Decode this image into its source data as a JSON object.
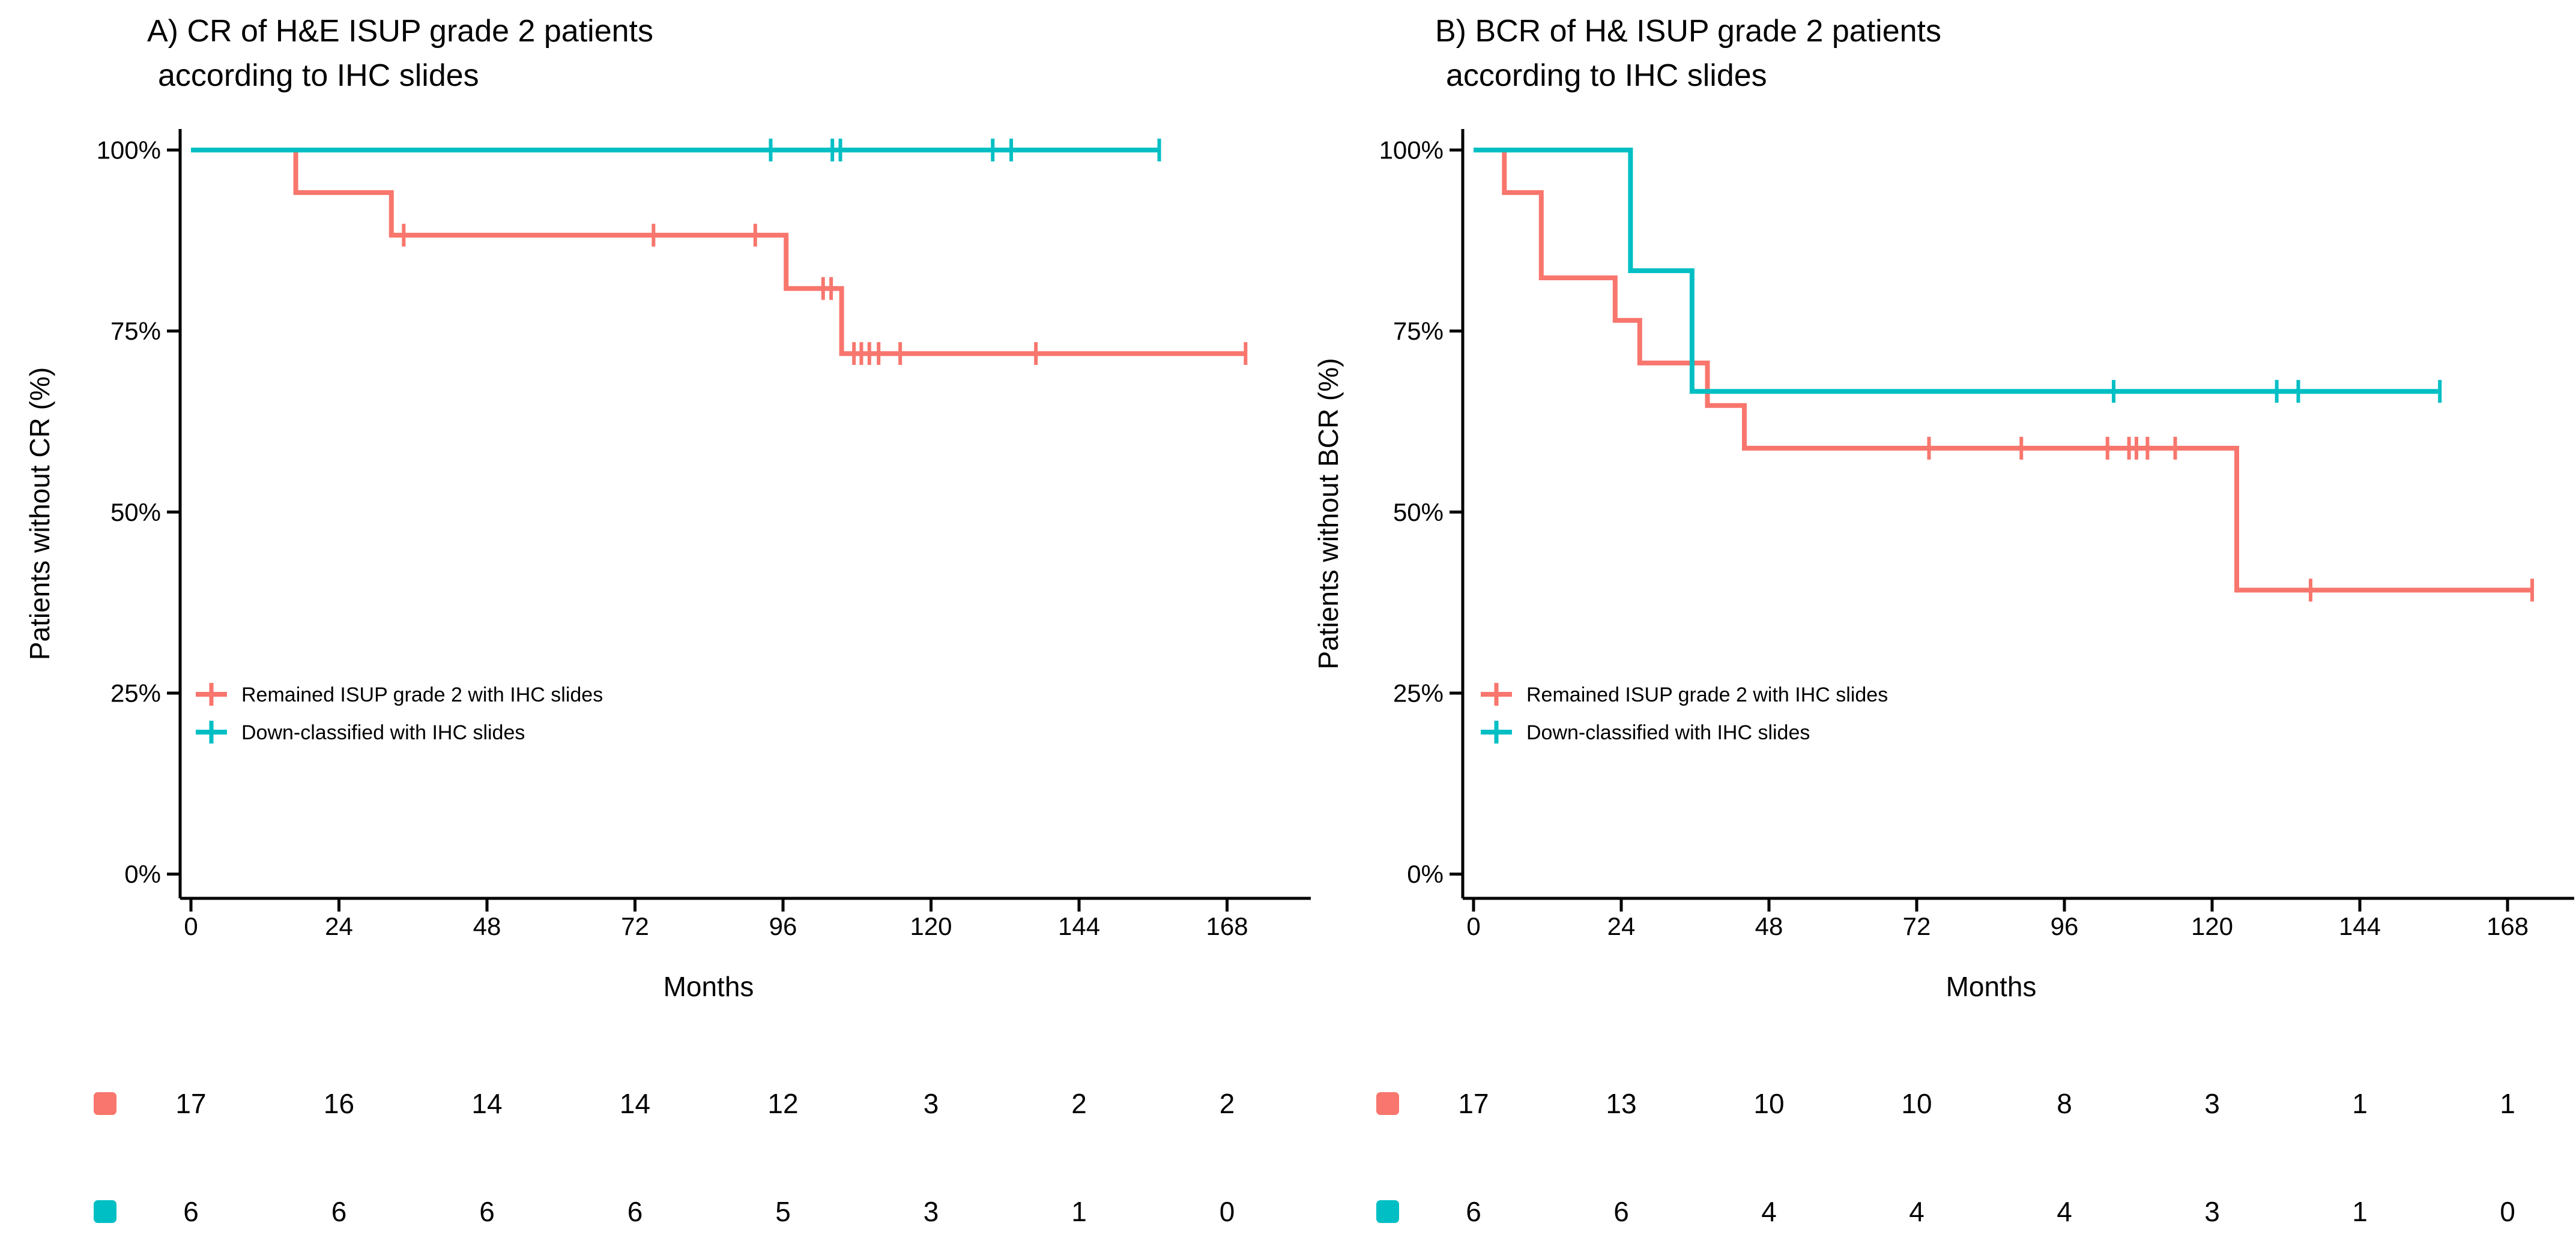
{
  "figure_background": "#ffffff",
  "axis_color": "#000000",
  "chart_data": [
    {
      "type": "line",
      "subtype": "kaplan-meier-step",
      "panel": "A",
      "title_line1": "A) CR of H&E ISUP grade 2 patients",
      "title_line2": "according to IHC slides",
      "xlabel": "Months",
      "ylabel": "Patients without CR (%)",
      "xlim": [
        0,
        175
      ],
      "ylim": [
        0,
        100
      ],
      "grid": false,
      "legend_position": "inside lower-left",
      "x_ticks": [
        0,
        24,
        48,
        72,
        96,
        120,
        144,
        168
      ],
      "y_tick_values": [
        100,
        75,
        50,
        25,
        0
      ],
      "y_tick_labels": [
        "100%",
        "75%",
        "50%",
        "25%",
        "0%"
      ],
      "series": [
        {
          "name": "Remained ISUP grade 2 with IHC slides",
          "color": "#F8766D",
          "points": [
            [
              0,
              100
            ],
            [
              17,
              100
            ],
            [
              17,
              94.12
            ],
            [
              32.5,
              94.12
            ],
            [
              32.5,
              88.24
            ],
            [
              96.5,
              88.24
            ],
            [
              96.5,
              80.88
            ],
            [
              105.5,
              80.88
            ],
            [
              105.5,
              71.89
            ],
            [
              171,
              71.89
            ]
          ],
          "censors": [
            [
              34.5,
              88.24
            ],
            [
              75,
              88.24
            ],
            [
              91.5,
              88.24
            ],
            [
              102.5,
              80.88
            ],
            [
              103.8,
              80.88
            ],
            [
              107.5,
              71.89
            ],
            [
              108.7,
              71.89
            ],
            [
              110,
              71.89
            ],
            [
              111.5,
              71.89
            ],
            [
              115,
              71.89
            ],
            [
              137,
              71.89
            ],
            [
              171,
              71.89
            ]
          ]
        },
        {
          "name": "Down-classified with IHC slides",
          "color": "#00BFC4",
          "points": [
            [
              0,
              100
            ],
            [
              157,
              100
            ]
          ],
          "censors": [
            [
              94,
              100
            ],
            [
              104,
              100
            ],
            [
              105.3,
              100
            ],
            [
              130,
              100
            ],
            [
              133,
              100
            ],
            [
              157,
              100
            ]
          ]
        }
      ],
      "risk_table": {
        "times": [
          0,
          24,
          48,
          72,
          96,
          120,
          144,
          168
        ],
        "rows": [
          {
            "name": "Remained ISUP grade 2 with IHC slides",
            "color": "#F8766D",
            "counts": [
              17,
              16,
              14,
              14,
              12,
              3,
              2,
              2
            ]
          },
          {
            "name": "Down-classified with IHC slides",
            "color": "#00BFC4",
            "counts": [
              6,
              6,
              6,
              6,
              5,
              3,
              1,
              0
            ]
          }
        ]
      }
    },
    {
      "type": "line",
      "subtype": "kaplan-meier-step",
      "panel": "B",
      "title_line1": "B) BCR of H& ISUP grade 2 patients",
      "title_line2": "according to IHC slides",
      "xlabel": "Months",
      "ylabel": "Patients without BCR (%)",
      "xlim": [
        0,
        175
      ],
      "ylim": [
        0,
        100
      ],
      "grid": false,
      "legend_position": "inside lower-left",
      "x_ticks": [
        0,
        24,
        48,
        72,
        96,
        120,
        144,
        168
      ],
      "y_tick_values": [
        100,
        75,
        50,
        25,
        0
      ],
      "y_tick_labels": [
        "100%",
        "75%",
        "50%",
        "25%",
        "0%"
      ],
      "series": [
        {
          "name": "Remained ISUP grade 2 with IHC slides",
          "color": "#F8766D",
          "points": [
            [
              0,
              100
            ],
            [
              5,
              100
            ],
            [
              5,
              94.12
            ],
            [
              11,
              94.12
            ],
            [
              11,
              82.35
            ],
            [
              23,
              82.35
            ],
            [
              23,
              76.47
            ],
            [
              27,
              76.47
            ],
            [
              27,
              70.59
            ],
            [
              38,
              70.59
            ],
            [
              38,
              64.71
            ],
            [
              44,
              64.71
            ],
            [
              44,
              58.82
            ],
            [
              124,
              58.82
            ],
            [
              124,
              39.22
            ],
            [
              172,
              39.22
            ]
          ],
          "censors": [
            [
              74,
              58.82
            ],
            [
              89,
              58.82
            ],
            [
              103,
              58.82
            ],
            [
              106.5,
              58.82
            ],
            [
              107.7,
              58.82
            ],
            [
              109.5,
              58.82
            ],
            [
              114,
              58.82
            ],
            [
              136,
              39.22
            ],
            [
              172,
              39.22
            ]
          ]
        },
        {
          "name": "Down-classified with IHC slides",
          "color": "#00BFC4",
          "points": [
            [
              0,
              100
            ],
            [
              25.5,
              100
            ],
            [
              25.5,
              83.33
            ],
            [
              35.5,
              83.33
            ],
            [
              35.5,
              66.67
            ],
            [
              157,
              66.67
            ]
          ],
          "censors": [
            [
              104,
              66.67
            ],
            [
              130.5,
              66.67
            ],
            [
              134,
              66.67
            ],
            [
              157,
              66.67
            ]
          ]
        }
      ],
      "risk_table": {
        "times": [
          0,
          24,
          48,
          72,
          96,
          120,
          144,
          168
        ],
        "rows": [
          {
            "name": "Remained ISUP grade 2 with IHC slides",
            "color": "#F8766D",
            "counts": [
              17,
              13,
              10,
              10,
              8,
              3,
              1,
              1
            ]
          },
          {
            "name": "Down-classified with IHC slides",
            "color": "#00BFC4",
            "counts": [
              6,
              6,
              4,
              4,
              4,
              3,
              1,
              0
            ]
          }
        ]
      }
    }
  ]
}
